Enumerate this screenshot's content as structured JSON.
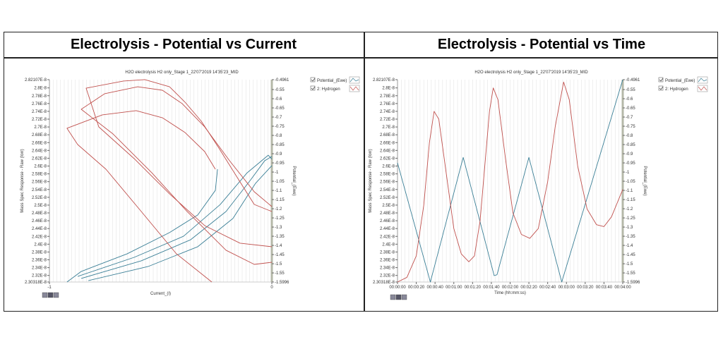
{
  "panels": [
    {
      "heading": "Electrolysis - Potential vs Current"
    },
    {
      "heading": "Electrolysis - Potential vs Time"
    }
  ],
  "colors": {
    "potential": "#3a7f96",
    "hydrogen": "#c0504d",
    "grid": "#e4e4e4",
    "right_axis": "#b5b8a8"
  },
  "chart_data": [
    {
      "type": "line",
      "title": "H2O electrolysis H2 only_Stage 1_22'07'2019 14'35'23_MID",
      "xlabel": "Current_(I)",
      "ylabel": "Mass Spec Response - Raw (torr)",
      "y2label": "Potential_(Ewe)",
      "xlim": [
        -1,
        0
      ],
      "ylim": [
        2.30318e-08,
        2.82107e-08
      ],
      "y2lim": [
        -1.5996,
        -0.4961
      ],
      "x_ticks": [
        "-1",
        "0"
      ],
      "y_ticks": [
        "2.82107E-8",
        "2.8E-8",
        "2.78E-8",
        "2.76E-8",
        "2.74E-8",
        "2.72E-8",
        "2.7E-8",
        "2.68E-8",
        "2.66E-8",
        "2.64E-8",
        "2.62E-8",
        "2.6E-8",
        "2.58E-8",
        "2.56E-8",
        "2.54E-8",
        "2.52E-8",
        "2.5E-8",
        "2.48E-8",
        "2.46E-8",
        "2.44E-8",
        "2.42E-8",
        "2.4E-8",
        "2.38E-8",
        "2.36E-8",
        "2.34E-8",
        "2.32E-8",
        "2.30318E-8"
      ],
      "y2_ticks": [
        "-0.4961",
        "-0.55",
        "-0.6",
        "-0.65",
        "-0.7",
        "-0.75",
        "-0.8",
        "-0.85",
        "-0.9",
        "-0.95",
        "-1",
        "-1.05",
        "-1.1",
        "-1.15",
        "-1.2",
        "-1.25",
        "-1.3",
        "-1.35",
        "-1.4",
        "-1.45",
        "-1.5",
        "-1.55",
        "-1.5996"
      ],
      "grid": true,
      "legend": {
        "placement": "top-right",
        "entries": [
          "Potential_(Ewe)",
          "2: Hydrogen"
        ]
      },
      "series": [
        {
          "name": "Potential_(Ewe)",
          "axis": "right",
          "segments": [
            [
              [
                -0.921,
                -1.5996
              ],
              [
                -0.857,
                -1.542
              ],
              [
                -0.651,
                -1.446
              ],
              [
                -0.46,
                -1.33
              ],
              [
                -0.333,
                -1.234
              ],
              [
                -0.254,
                -1.1
              ],
              [
                -0.244,
                -0.984
              ]
            ],
            [
              [
                -0.857,
                -1.58
              ],
              [
                -0.587,
                -1.484
              ],
              [
                -0.365,
                -1.369
              ],
              [
                -0.206,
                -1.215
              ],
              [
                -0.095,
                -1.042
              ],
              [
                -0.032,
                -0.938
              ],
              [
                0,
                -0.915
              ]
            ],
            [
              [
                -0.825,
                -1.592
              ],
              [
                -0.556,
                -1.515
              ],
              [
                -0.333,
                -1.407
              ],
              [
                -0.175,
                -1.253
              ],
              [
                -0.073,
                -1.061
              ],
              [
                0,
                -0.965
              ]
            ],
            [
              [
                -0.873,
                -1.569
              ],
              [
                -0.619,
                -1.465
              ],
              [
                -0.397,
                -1.35
              ],
              [
                -0.232,
                -1.177
              ],
              [
                -0.111,
                -1.004
              ],
              [
                -0.016,
                -0.908
              ],
              [
                0,
                -0.93
              ]
            ]
          ]
        },
        {
          "name": "2: Hydrogen",
          "axis": "left",
          "segments": [
            [
              [
                0,
                2.3935e-08
              ],
              [
                -0.143,
                2.4025e-08
              ],
              [
                -0.302,
                2.4476e-08
              ],
              [
                -0.46,
                2.5288e-08
              ],
              [
                -0.619,
                2.619e-08
              ],
              [
                -0.778,
                2.7002e-08
              ],
              [
                -0.835,
                2.7994e-08
              ],
              [
                -0.667,
                2.8175e-08
              ],
              [
                -0.571,
                2.8211e-08
              ],
              [
                -0.46,
                2.803e-08
              ],
              [
                -0.39,
                2.7633e-08
              ],
              [
                -0.317,
                2.7146e-08
              ],
              [
                -0.238,
                2.6461e-08
              ],
              [
                -0.143,
                2.5594e-08
              ],
              [
                -0.079,
                2.5017e-08
              ],
              [
                0,
                2.4836e-08
              ]
            ],
            [
              [
                0,
                2.3537e-08
              ],
              [
                -0.079,
                2.3483e-08
              ],
              [
                -0.206,
                2.3845e-08
              ],
              [
                -0.381,
                2.4837e-08
              ],
              [
                -0.54,
                2.5829e-08
              ],
              [
                -0.714,
                2.6821e-08
              ],
              [
                -0.857,
                2.7453e-08
              ],
              [
                -0.752,
                2.785e-08
              ],
              [
                -0.603,
                2.803e-08
              ],
              [
                -0.492,
                2.794e-08
              ],
              [
                -0.403,
                2.7597e-08
              ],
              [
                -0.302,
                2.7002e-08
              ],
              [
                -0.19,
                2.6135e-08
              ],
              [
                -0.079,
                2.5342e-08
              ],
              [
                0,
                2.4963e-08
              ]
            ],
            [
              [
                -0.27,
                2.3032e-08
              ],
              [
                -0.429,
                2.3754e-08
              ],
              [
                -0.587,
                2.4836e-08
              ],
              [
                -0.746,
                2.5919e-08
              ],
              [
                -0.873,
                2.6551e-08
              ],
              [
                -0.921,
                2.6966e-08
              ],
              [
                -0.762,
                2.7309e-08
              ],
              [
                -0.61,
                2.7417e-08
              ],
              [
                -0.492,
                2.7236e-08
              ],
              [
                -0.39,
                2.6857e-08
              ],
              [
                -0.302,
                2.637e-08
              ],
              [
                -0.254,
                2.5919e-08
              ]
            ]
          ]
        }
      ]
    },
    {
      "type": "line",
      "title": "H2O electrolysis H2 only_Stage 1_22'07'2019 14'35'23_MID",
      "xlabel": "Time (hh:mm:ss)",
      "ylabel": "Mass Spec Response - Raw (torr)",
      "y2label": "Potential_(Ewe)",
      "xlim": [
        "00:00:00",
        "00:04:00"
      ],
      "ylim": [
        2.30318e-08,
        2.82107e-08
      ],
      "y2lim": [
        -1.5996,
        -0.4961
      ],
      "x_ticks": [
        "00:00:00",
        "00:00:20",
        "00:00:40",
        "00:01:00",
        "00:01:20",
        "00:01:40",
        "00:02:00",
        "00:02:20",
        "00:02:40",
        "00:03:00",
        "00:03:20",
        "00:03:40",
        "00:04:00"
      ],
      "y_ticks": [
        "2.82107E-8",
        "2.8E-8",
        "2.78E-8",
        "2.76E-8",
        "2.74E-8",
        "2.72E-8",
        "2.7E-8",
        "2.68E-8",
        "2.66E-8",
        "2.64E-8",
        "2.62E-8",
        "2.6E-8",
        "2.58E-8",
        "2.56E-8",
        "2.54E-8",
        "2.52E-8",
        "2.5E-8",
        "2.48E-8",
        "2.46E-8",
        "2.44E-8",
        "2.42E-8",
        "2.4E-8",
        "2.38E-8",
        "2.36E-8",
        "2.34E-8",
        "2.32E-8",
        "2.30318E-8"
      ],
      "y2_ticks": [
        "-0.4961",
        "-0.55",
        "-0.6",
        "-0.65",
        "-0.7",
        "-0.75",
        "-0.8",
        "-0.85",
        "-0.9",
        "-0.95",
        "-1",
        "-1.05",
        "-1.1",
        "-1.15",
        "-1.2",
        "-1.25",
        "-1.3",
        "-1.35",
        "-1.4",
        "-1.45",
        "-1.5",
        "-1.55",
        "-1.5996"
      ],
      "grid": true,
      "legend": {
        "placement": "top-right",
        "entries": [
          "Potential_(Ewe)",
          "2: Hydrogen"
        ]
      },
      "series": [
        {
          "name": "Potential_(Ewe)",
          "axis": "right",
          "segments": [
            [
              [
                "00:00:00",
                -0.95
              ],
              [
                "00:00:35",
                -1.5996
              ],
              [
                "00:01:10",
                -0.92
              ],
              [
                "00:01:43",
                -1.565
              ],
              [
                "00:01:46",
                -1.56
              ],
              [
                "00:02:20",
                -0.92
              ],
              [
                "00:02:55",
                -1.5996
              ],
              [
                "00:04:00",
                -0.4961
              ]
            ]
          ]
        },
        {
          "name": "2: Hydrogen",
          "axis": "left",
          "segments": [
            [
              [
                "00:00:00",
                2.3032e-08
              ],
              [
                "00:00:10",
                2.315e-08
              ],
              [
                "00:00:20",
                2.37e-08
              ],
              [
                "00:00:28",
                2.5e-08
              ],
              [
                "00:00:34",
                2.66e-08
              ],
              [
                "00:00:39",
                2.74e-08
              ],
              [
                "00:00:44",
                2.72e-08
              ],
              [
                "00:00:52",
                2.58e-08
              ],
              [
                "00:01:00",
                2.44e-08
              ],
              [
                "00:01:08",
                2.375e-08
              ],
              [
                "00:01:16",
                2.355e-08
              ],
              [
                "00:01:22",
                2.37e-08
              ],
              [
                "00:01:28",
                2.46e-08
              ],
              [
                "00:01:33",
                2.6e-08
              ],
              [
                "00:01:38",
                2.74e-08
              ],
              [
                "00:01:42",
                2.8e-08
              ],
              [
                "00:01:47",
                2.77e-08
              ],
              [
                "00:01:55",
                2.62e-08
              ],
              [
                "00:02:03",
                2.48e-08
              ],
              [
                "00:02:12",
                2.425e-08
              ],
              [
                "00:02:21",
                2.415e-08
              ],
              [
                "00:02:30",
                2.44e-08
              ],
              [
                "00:02:40",
                2.56e-08
              ],
              [
                "00:02:48",
                2.7e-08
              ],
              [
                "00:02:57",
                2.815e-08
              ],
              [
                "00:03:03",
                2.77e-08
              ],
              [
                "00:03:12",
                2.6e-08
              ],
              [
                "00:03:22",
                2.49e-08
              ],
              [
                "00:03:32",
                2.45e-08
              ],
              [
                "00:03:40",
                2.445e-08
              ],
              [
                "00:03:48",
                2.47e-08
              ],
              [
                "00:04:00",
                2.54e-08
              ]
            ]
          ]
        }
      ]
    }
  ]
}
